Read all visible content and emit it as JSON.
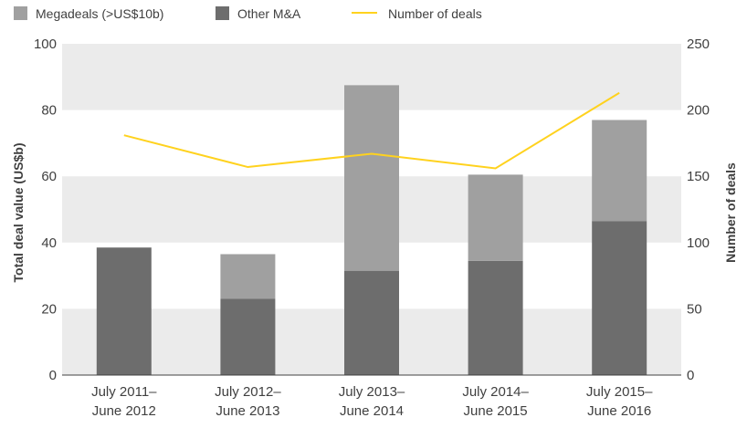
{
  "chart_data": {
    "type": "bar",
    "stacked": true,
    "categories": [
      [
        "July 2011–",
        "June 2012"
      ],
      [
        "July 2012–",
        "June 2013"
      ],
      [
        "July 2013–",
        "June 2014"
      ],
      [
        "July 2014–",
        "June 2015"
      ],
      [
        "July 2015–",
        "June 2016"
      ]
    ],
    "series": [
      {
        "name": "Other M&A",
        "kind": "bar",
        "axis": "left",
        "color": "#6d6d6d",
        "values": [
          38.5,
          23,
          31.5,
          34.5,
          46.5
        ]
      },
      {
        "name": "Megadeals (>US$10b)",
        "kind": "bar",
        "axis": "left",
        "color": "#a0a0a0",
        "values": [
          0,
          13.5,
          56,
          26,
          30.5
        ]
      },
      {
        "name": "Number of deals",
        "kind": "line",
        "axis": "right",
        "color": "#ffd21e",
        "values": [
          181,
          157,
          167,
          156,
          213
        ]
      }
    ],
    "ylabel": "Total deal value (US$b)",
    "y2label": "Number of deals",
    "ylim": [
      0,
      100
    ],
    "y2lim": [
      0,
      250
    ],
    "yticks": [
      0,
      20,
      40,
      60,
      80,
      100
    ],
    "y2ticks": [
      0,
      50,
      100,
      150,
      200,
      250
    ],
    "legend": {
      "position": "top-left",
      "items": [
        "Megadeals (>US$10b)",
        "Other M&A",
        "Number of deals"
      ]
    },
    "grid": "alternating horizontal bands",
    "band_color": "#ebebeb"
  }
}
